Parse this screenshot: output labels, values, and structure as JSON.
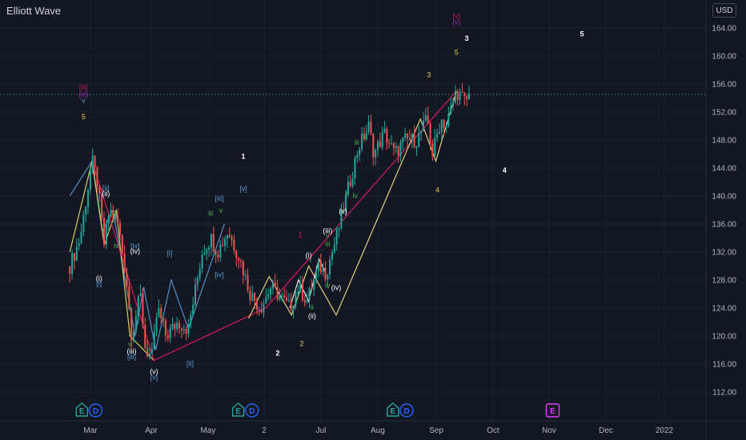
{
  "app": {
    "title": "Elliott Wave",
    "currency": "USD"
  },
  "colors": {
    "up": "#26a69a",
    "down": "#ef5350",
    "background": "#131722",
    "grid": "#1e2230",
    "axis": "#2a2e39"
  },
  "chart_data": {
    "type": "candlestick",
    "title": "Elliott Wave",
    "ylim": [
      109,
      168
    ],
    "y_ticks": [
      112.0,
      116.0,
      120.0,
      124.0,
      128.0,
      132.0,
      136.0,
      140.0,
      144.0,
      148.0,
      152.0,
      156.0,
      160.0,
      164.0
    ],
    "x_ticks": [
      "Mar",
      "Apr",
      "May",
      "2",
      "Jul",
      "Aug",
      "Sep",
      "Oct",
      "Nov",
      "Dec",
      "2022"
    ],
    "last_price": 154.5,
    "price_path": [
      [
        "2021-01-20",
        130
      ],
      [
        "2021-01-26",
        134
      ],
      [
        "2021-02-02",
        145
      ],
      [
        "2021-02-05",
        142
      ],
      [
        "2021-02-09",
        133
      ],
      [
        "2021-02-12",
        138
      ],
      [
        "2021-02-17",
        136
      ],
      [
        "2021-02-22",
        128
      ],
      [
        "2021-02-25",
        120
      ],
      [
        "2021-03-02",
        126
      ],
      [
        "2021-03-05",
        118
      ],
      [
        "2021-03-09",
        117
      ],
      [
        "2021-03-12",
        124
      ],
      [
        "2021-03-17",
        120
      ],
      [
        "2021-03-24",
        122
      ],
      [
        "2021-03-30",
        121
      ],
      [
        "2021-04-07",
        132
      ],
      [
        "2021-04-12",
        134
      ],
      [
        "2021-04-16",
        132
      ],
      [
        "2021-04-22",
        135
      ],
      [
        "2021-04-29",
        131
      ],
      [
        "2021-05-05",
        126
      ],
      [
        "2021-05-11",
        124
      ],
      [
        "2021-05-17",
        127
      ],
      [
        "2021-05-21",
        126
      ],
      [
        "2021-05-28",
        124
      ],
      [
        "2021-06-02",
        127
      ],
      [
        "2021-06-07",
        125
      ],
      [
        "2021-06-14",
        130
      ],
      [
        "2021-06-18",
        129
      ],
      [
        "2021-06-24",
        134
      ],
      [
        "2021-06-30",
        140
      ],
      [
        "2021-07-07",
        147
      ],
      [
        "2021-07-13",
        150
      ],
      [
        "2021-07-16",
        146
      ],
      [
        "2021-07-22",
        149
      ],
      [
        "2021-07-28",
        146
      ],
      [
        "2021-08-03",
        148
      ],
      [
        "2021-08-10",
        148
      ],
      [
        "2021-08-16",
        151
      ],
      [
        "2021-08-19",
        146
      ],
      [
        "2021-08-24",
        151
      ],
      [
        "2021-08-27",
        150
      ],
      [
        "2021-09-02",
        155
      ],
      [
        "2021-09-07",
        153.5
      ],
      [
        "2021-09-10",
        154.5
      ]
    ],
    "wave_lines": [
      {
        "color": "#5b9bd5",
        "points": [
          [
            "2021-01-20",
            140
          ],
          [
            "2021-02-02",
            145
          ],
          [
            "2021-02-08",
            135
          ],
          [
            "2021-02-14",
            138
          ],
          [
            "2021-02-27",
            120
          ],
          [
            "2021-03-04",
            127
          ],
          [
            "2021-03-11",
            118
          ],
          [
            "2021-03-20",
            128
          ],
          [
            "2021-03-30",
            121
          ],
          [
            "2021-04-20",
            136
          ]
        ]
      },
      {
        "color": "#e8e36a",
        "points": [
          [
            "2021-01-20",
            132
          ],
          [
            "2021-02-02",
            145
          ],
          [
            "2021-02-09",
            133
          ],
          [
            "2021-02-16",
            138
          ],
          [
            "2021-02-24",
            120
          ],
          [
            "2021-03-10",
            116.5
          ]
        ]
      },
      {
        "color": "#e91e63",
        "points": [
          [
            "2021-02-02",
            145
          ],
          [
            "2021-03-10",
            116.5
          ],
          [
            "2021-05-14",
            124
          ],
          [
            "2021-09-02",
            155
          ]
        ]
      },
      {
        "color": "#f0e68c",
        "points": [
          [
            "2021-05-04",
            122.5
          ],
          [
            "2021-05-16",
            128.5
          ],
          [
            "2021-05-29",
            123
          ],
          [
            "2021-06-08",
            130
          ],
          [
            "2021-06-24",
            123
          ],
          [
            "2021-08-12",
            151
          ],
          [
            "2021-08-21",
            145
          ],
          [
            "2021-09-02",
            155
          ]
        ]
      },
      {
        "color": "#ffffff",
        "points": [
          [
            "2021-05-28",
            124
          ],
          [
            "2021-06-02",
            128
          ],
          [
            "2021-06-08",
            125
          ],
          [
            "2021-06-14",
            131
          ],
          [
            "2021-06-18",
            129
          ]
        ]
      }
    ],
    "wave_labels": [
      {
        "text": "[iii]",
        "date": "2021-01-28",
        "price": 155.2,
        "color": "#c2185b"
      },
      {
        "text": "(iii)",
        "date": "2021-01-28",
        "price": 154.2,
        "color": "#9c27b0"
      },
      {
        "text": "v",
        "date": "2021-01-28",
        "price": 153.3,
        "color": "#5b9bd5"
      },
      {
        "text": "5",
        "date": "2021-01-28",
        "price": 151.0,
        "color": "#e8c84a"
      },
      {
        "text": "[ii]",
        "date": "2021-02-10",
        "price": 140.8,
        "color": "#5b9bd5"
      },
      {
        "text": "(ii)",
        "date": "2021-02-10",
        "price": 140.0,
        "color": "#ffffff"
      },
      {
        "text": "ii",
        "date": "2021-02-15",
        "price": 137.2,
        "color": "#4caf50"
      },
      {
        "text": "iv",
        "date": "2021-02-16",
        "price": 132.6,
        "color": "#4caf50"
      },
      {
        "text": "(i)",
        "date": "2021-02-06",
        "price": 127.9,
        "color": "#ffffff"
      },
      {
        "text": "[i]",
        "date": "2021-02-06",
        "price": 127.2,
        "color": "#5b9bd5"
      },
      {
        "text": "[iv]",
        "date": "2021-02-27",
        "price": 132.5,
        "color": "#5b9bd5"
      },
      {
        "text": "(iv)",
        "date": "2021-02-27",
        "price": 131.8,
        "color": "#ffffff"
      },
      {
        "text": "[i]",
        "date": "2021-03-19",
        "price": 131.5,
        "color": "#5b9bd5"
      },
      {
        "text": "v",
        "date": "2021-02-24",
        "price": 118.5,
        "color": "#4caf50"
      },
      {
        "text": "(iii)",
        "date": "2021-02-25",
        "price": 117.5,
        "color": "#ffffff"
      },
      {
        "text": "[iii]",
        "date": "2021-02-25",
        "price": 116.7,
        "color": "#5b9bd5"
      },
      {
        "text": "(v)",
        "date": "2021-03-10",
        "price": 114.6,
        "color": "#ffffff"
      },
      {
        "text": "[v]",
        "date": "2021-03-10",
        "price": 113.8,
        "color": "#5b9bd5"
      },
      {
        "text": "[ii]",
        "date": "2021-03-31",
        "price": 115.7,
        "color": "#5b9bd5"
      },
      {
        "text": "iii",
        "date": "2021-04-12",
        "price": 137.2,
        "color": "#4caf50"
      },
      {
        "text": "v",
        "date": "2021-04-18",
        "price": 137.6,
        "color": "#4caf50"
      },
      {
        "text": "[iii]",
        "date": "2021-04-17",
        "price": 139.3,
        "color": "#5b9bd5"
      },
      {
        "text": "[v]",
        "date": "2021-05-01",
        "price": 140.7,
        "color": "#5b9bd5"
      },
      {
        "text": "[iv]",
        "date": "2021-04-17",
        "price": 128.4,
        "color": "#5b9bd5"
      },
      {
        "text": "1",
        "date": "2021-05-01",
        "price": 145.3,
        "color": "#ffffff"
      },
      {
        "text": "1",
        "date": "2021-06-03",
        "price": 134.1,
        "color": "#e91e63"
      },
      {
        "text": "2",
        "date": "2021-05-21",
        "price": 117.2,
        "color": "#ffffff"
      },
      {
        "text": "2",
        "date": "2021-06-04",
        "price": 118.6,
        "color": "#e8c84a"
      },
      {
        "text": "(i)",
        "date": "2021-06-08",
        "price": 131.2,
        "color": "#ffffff"
      },
      {
        "text": "i",
        "date": "2021-06-09",
        "price": 130.5,
        "color": "#4caf50"
      },
      {
        "text": "(ii)",
        "date": "2021-06-10",
        "price": 122.5,
        "color": "#ffffff"
      },
      {
        "text": "ii",
        "date": "2021-06-10",
        "price": 123.8,
        "color": "#4caf50"
      },
      {
        "text": "(iii)",
        "date": "2021-06-19",
        "price": 134.7,
        "color": "#ffffff"
      },
      {
        "text": "v",
        "date": "2021-06-19",
        "price": 134.0,
        "color": "#4caf50"
      },
      {
        "text": "iii",
        "date": "2021-06-19",
        "price": 132.8,
        "color": "#4caf50"
      },
      {
        "text": "iv",
        "date": "2021-06-19",
        "price": 126.9,
        "color": "#4caf50"
      },
      {
        "text": "(iv)",
        "date": "2021-06-24",
        "price": 126.6,
        "color": "#ffffff"
      },
      {
        "text": "(v)",
        "date": "2021-06-28",
        "price": 137.5,
        "color": "#ffffff"
      },
      {
        "text": "i",
        "date": "2021-06-30",
        "price": 140.0,
        "color": "#4caf50"
      },
      {
        "text": "iv",
        "date": "2021-07-05",
        "price": 139.7,
        "color": "#4caf50"
      },
      {
        "text": "iii",
        "date": "2021-07-06",
        "price": 147.3,
        "color": "#4caf50"
      },
      {
        "text": "v",
        "date": "2021-07-11",
        "price": 148.2,
        "color": "#4caf50"
      },
      {
        "text": "3",
        "date": "2021-08-17",
        "price": 157.0,
        "color": "#e8c84a"
      },
      {
        "text": "4",
        "date": "2021-08-22",
        "price": 140.5,
        "color": "#e8c84a"
      },
      {
        "text": "5",
        "date": "2021-09-02",
        "price": 160.2,
        "color": "#e8c84a"
      },
      {
        "text": "[v]",
        "date": "2021-09-02",
        "price": 165.4,
        "color": "#c2185b"
      },
      {
        "text": "(v)",
        "date": "2021-09-02",
        "price": 164.5,
        "color": "#9c27b0"
      },
      {
        "text": "3",
        "date": "2021-09-08",
        "price": 162.2,
        "color": "#ffffff"
      },
      {
        "text": "4",
        "date": "2021-09-30",
        "price": 143.3,
        "color": "#ffffff"
      },
      {
        "text": "5",
        "date": "2021-11-14",
        "price": 162.8,
        "color": "#ffffff"
      }
    ],
    "events": [
      {
        "type": "E",
        "date": "2021-01-27",
        "color": "#26a69a"
      },
      {
        "type": "D",
        "date": "2021-02-04",
        "color": "#2962ff"
      },
      {
        "type": "E",
        "date": "2021-04-28",
        "color": "#26a69a"
      },
      {
        "type": "D",
        "date": "2021-05-06",
        "color": "#2962ff"
      },
      {
        "type": "E",
        "date": "2021-07-27",
        "color": "#26a69a"
      },
      {
        "type": "D",
        "date": "2021-08-04",
        "color": "#2962ff"
      },
      {
        "type": "E",
        "date": "2021-10-28",
        "color": "#e040fb"
      }
    ]
  }
}
